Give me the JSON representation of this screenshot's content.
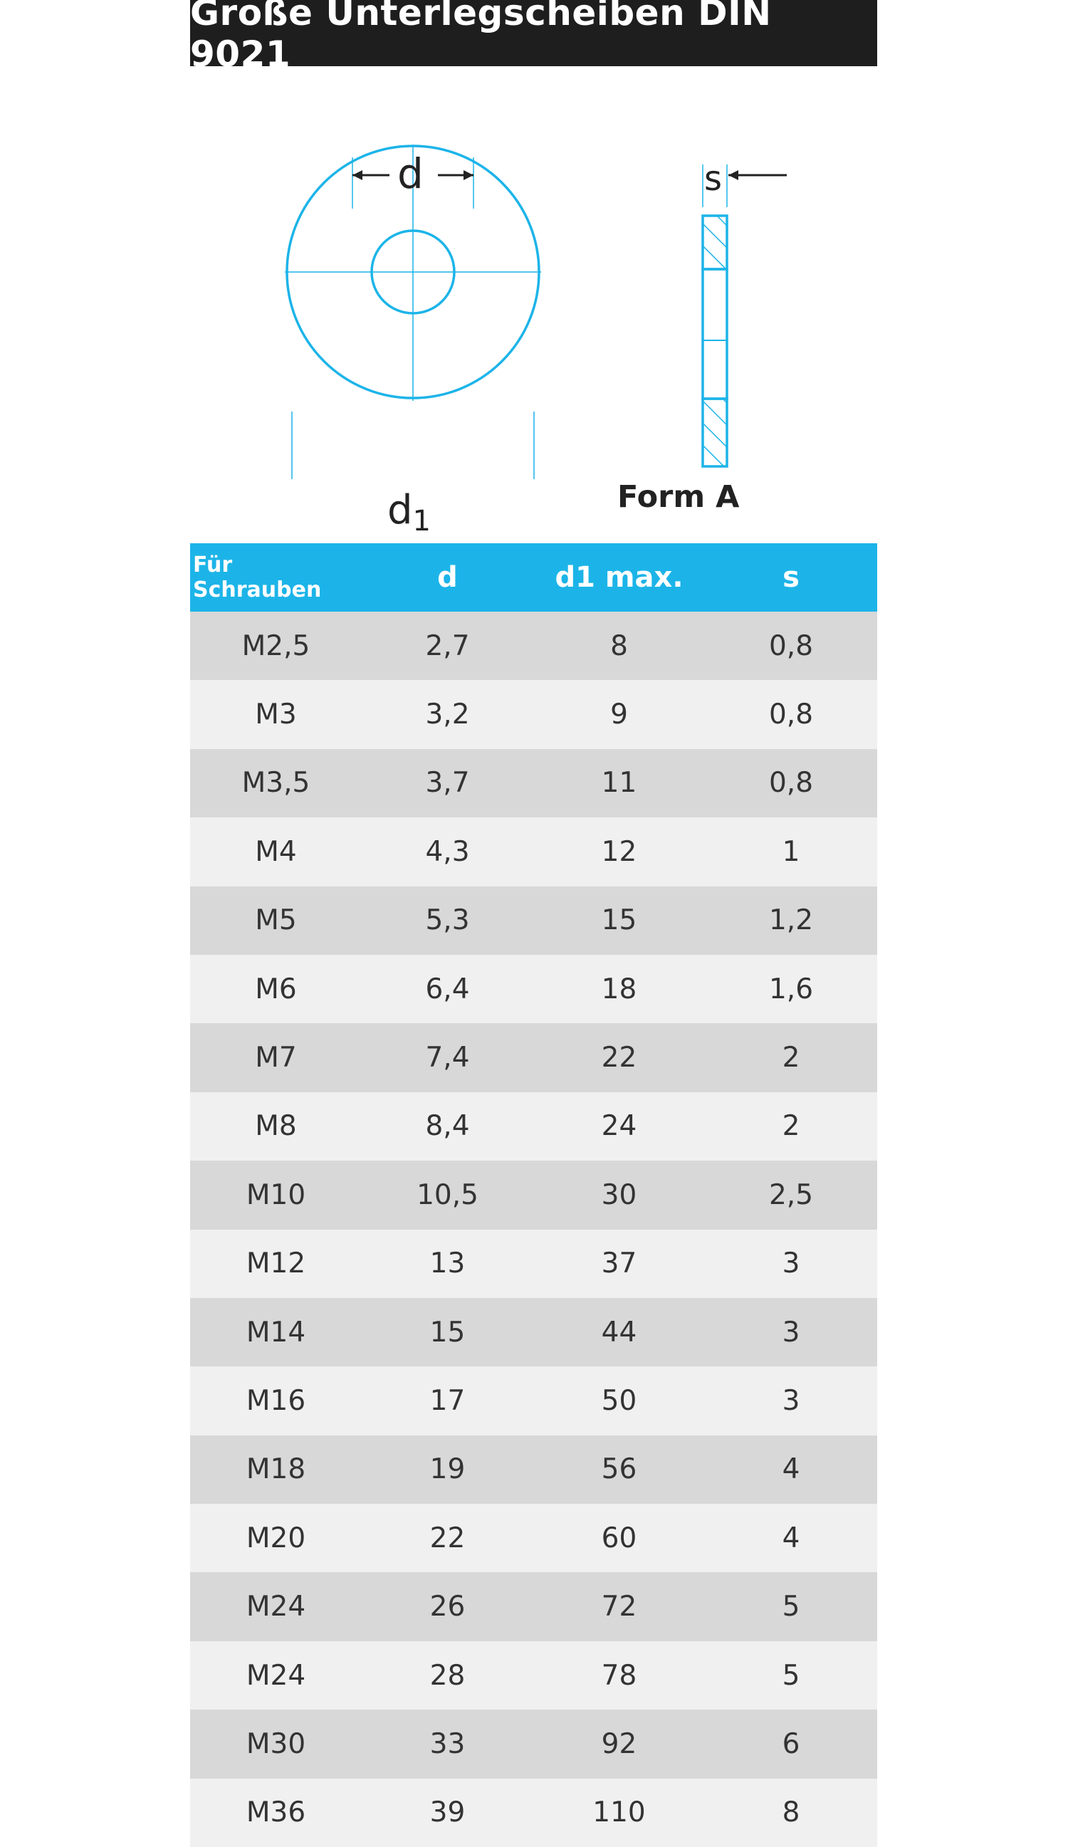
{
  "title": "Große Unterlegscheiben DIN 9021",
  "drawing": {
    "label_d": "d",
    "label_s": "s",
    "label_d1": "d",
    "label_d1_sub": "1",
    "form_label": "Form A",
    "line_color": "#1cb4e8"
  },
  "table": {
    "header_color": "#1cb4e8",
    "headers": [
      "Für Schrauben",
      "d",
      "d1 max.",
      "s"
    ],
    "rows": [
      [
        "M2,5",
        "2,7",
        "8",
        "0,8"
      ],
      [
        "M3",
        "3,2",
        "9",
        "0,8"
      ],
      [
        "M3,5",
        "3,7",
        "11",
        "0,8"
      ],
      [
        "M4",
        "4,3",
        "12",
        "1"
      ],
      [
        "M5",
        "5,3",
        "15",
        "1,2"
      ],
      [
        "M6",
        "6,4",
        "18",
        "1,6"
      ],
      [
        "M7",
        "7,4",
        "22",
        "2"
      ],
      [
        "M8",
        "8,4",
        "24",
        "2"
      ],
      [
        "M10",
        "10,5",
        "30",
        "2,5"
      ],
      [
        "M12",
        "13",
        "37",
        "3"
      ],
      [
        "M14",
        "15",
        "44",
        "3"
      ],
      [
        "M16",
        "17",
        "50",
        "3"
      ],
      [
        "M18",
        "19",
        "56",
        "4"
      ],
      [
        "M20",
        "22",
        "60",
        "4"
      ],
      [
        "M24",
        "26",
        "72",
        "5"
      ],
      [
        "M24",
        "28",
        "78",
        "5"
      ],
      [
        "M30",
        "33",
        "92",
        "6"
      ],
      [
        "M36",
        "39",
        "110",
        "8"
      ]
    ]
  }
}
